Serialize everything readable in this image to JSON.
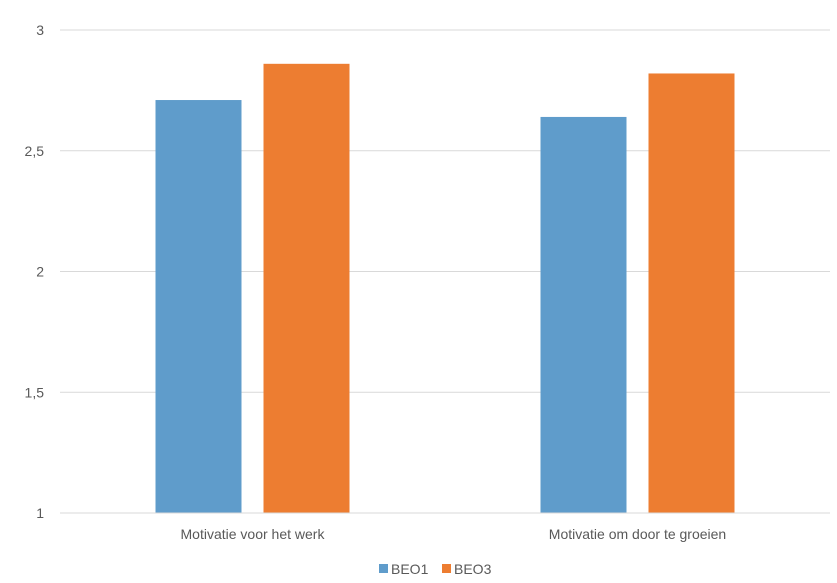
{
  "chart_data": {
    "type": "bar",
    "categories": [
      "Motivatie voor het werk",
      "Motivatie om door te groeien"
    ],
    "series": [
      {
        "name": "BEO1",
        "values": [
          2.71,
          2.64
        ],
        "color": "#5f9ccb"
      },
      {
        "name": "BEO3",
        "values": [
          2.86,
          2.82
        ],
        "color": "#ed7d31"
      }
    ],
    "ylim": [
      1,
      3
    ],
    "yticks": [
      1,
      1.5,
      2,
      2.5,
      3
    ],
    "ytick_labels": [
      "1",
      "1,5",
      "2",
      "2,5",
      "3"
    ],
    "grid": true,
    "legend": "bottom",
    "title": "",
    "xlabel": "",
    "ylabel": ""
  }
}
